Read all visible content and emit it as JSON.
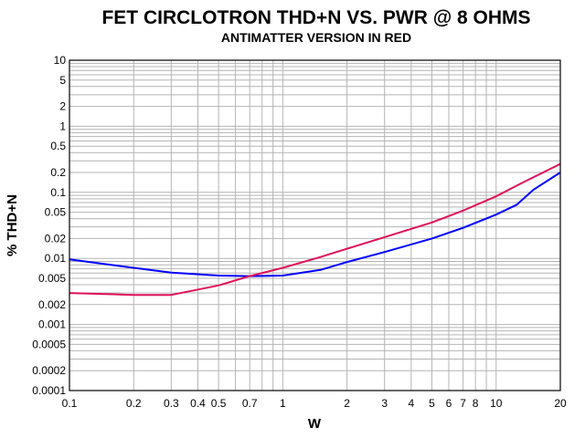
{
  "chart_data": {
    "type": "line",
    "title": "FET CIRCLOTRON THD+N VS. PWR @ 8 OHMS",
    "subtitle": "ANTIMATTER VERSION IN RED",
    "xlabel": "W",
    "ylabel": "% THD+N",
    "x_scale": "log",
    "y_scale": "log",
    "xlim": [
      0.1,
      20
    ],
    "ylim": [
      0.0001,
      10
    ],
    "grid": true,
    "x_ticks": [
      0.1,
      0.2,
      0.3,
      0.4,
      0.5,
      0.7,
      1,
      2,
      3,
      4,
      5,
      6,
      7,
      8,
      10,
      20
    ],
    "x_tick_labels": [
      "0.1",
      "0.2",
      "0.3",
      "0.4",
      "0.5",
      "0.7",
      "1",
      "2",
      "3",
      "4",
      "5",
      "6",
      "7",
      "8",
      "10",
      "20"
    ],
    "y_ticks": [
      10,
      5,
      2,
      1,
      0.5,
      0.2,
      0.1,
      0.05,
      0.02,
      0.01,
      0.005,
      0.002,
      0.001,
      0.0005,
      0.0002,
      0.0001
    ],
    "y_tick_labels": [
      "10",
      "5",
      "2",
      "1",
      "0.5",
      "0.2",
      "0.1",
      "0.05",
      "0.02",
      "0.01",
      "0.005",
      "0.002",
      "0.001",
      "0.0005",
      "0.0002",
      "0.0001"
    ],
    "series": [
      {
        "color": "#0000ff",
        "points": [
          [
            0.1,
            0.0097
          ],
          [
            0.2,
            0.0072
          ],
          [
            0.3,
            0.0061
          ],
          [
            0.5,
            0.0055
          ],
          [
            0.7,
            0.0054
          ],
          [
            1.0,
            0.0055
          ],
          [
            1.5,
            0.0067
          ],
          [
            2.0,
            0.0088
          ],
          [
            3.0,
            0.0125
          ],
          [
            5.0,
            0.02
          ],
          [
            7.0,
            0.029
          ],
          [
            10.0,
            0.046
          ],
          [
            12.5,
            0.065
          ],
          [
            15.0,
            0.11
          ],
          [
            20.0,
            0.2
          ]
        ]
      },
      {
        "color": "#e0105a",
        "points": [
          [
            0.1,
            0.003
          ],
          [
            0.2,
            0.0028
          ],
          [
            0.3,
            0.0028
          ],
          [
            0.5,
            0.0039
          ],
          [
            0.7,
            0.0054
          ],
          [
            1.0,
            0.0072
          ],
          [
            1.5,
            0.0105
          ],
          [
            2.0,
            0.014
          ],
          [
            3.0,
            0.021
          ],
          [
            5.0,
            0.035
          ],
          [
            7.0,
            0.053
          ],
          [
            10.0,
            0.087
          ],
          [
            13.0,
            0.135
          ],
          [
            20.0,
            0.27
          ]
        ]
      }
    ]
  }
}
